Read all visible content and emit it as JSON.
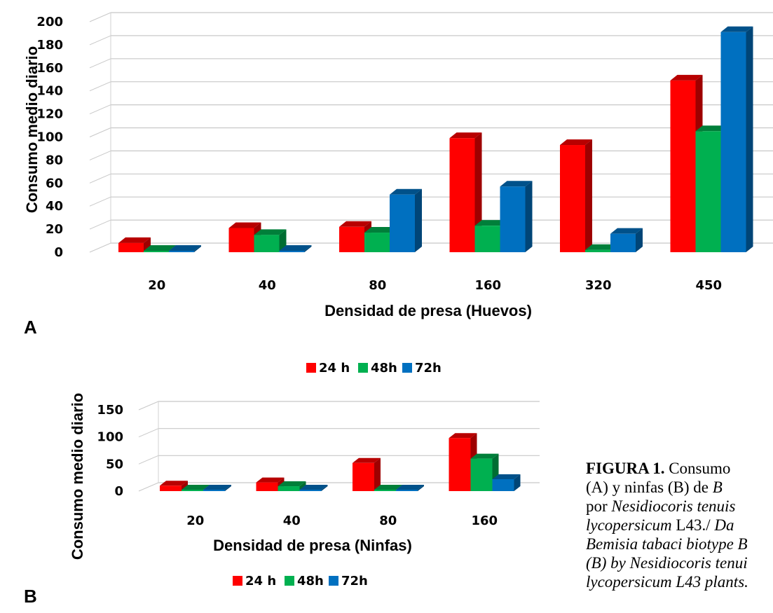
{
  "chart_data": [
    {
      "panel": "A",
      "type": "bar",
      "categories": [
        "20",
        "40",
        "80",
        "160",
        "320",
        "450"
      ],
      "series": [
        {
          "name": "24 h",
          "values": [
            8,
            21,
            22,
            99,
            93,
            149
          ]
        },
        {
          "name": "48h",
          "values": [
            0,
            15,
            17,
            23,
            2,
            105
          ]
        },
        {
          "name": "72h",
          "values": [
            0,
            1,
            50,
            57,
            16,
            191
          ]
        }
      ],
      "xlabel": "Densidad de presa (Huevos)",
      "ylabel": "Consumo medio diario",
      "ylim": [
        0,
        200
      ],
      "yticks": [
        "0",
        "20",
        "40",
        "60",
        "80",
        "100",
        "120",
        "140",
        "160",
        "180",
        "200"
      ],
      "grid": true,
      "legend_position": "bottom",
      "colors": {
        "24 h": "#ff0000",
        "48h": "#00b050",
        "72h": "#0070c0"
      }
    },
    {
      "panel": "B",
      "type": "bar",
      "categories": [
        "20",
        "40",
        "80",
        "160"
      ],
      "series": [
        {
          "name": "24 h",
          "values": [
            10,
            16,
            52,
            98
          ]
        },
        {
          "name": "48h",
          "values": [
            2,
            9,
            0,
            60
          ]
        },
        {
          "name": "72h",
          "values": [
            0,
            0,
            0,
            22
          ]
        }
      ],
      "xlabel": "Densidad de presa (Ninfas)",
      "ylabel": "Consumo medio diario",
      "ylim": [
        0,
        150
      ],
      "yticks": [
        "0",
        "50",
        "100",
        "150"
      ],
      "grid": true,
      "legend_position": "bottom",
      "colors": {
        "24 h": "#ff0000",
        "48h": "#00b050",
        "72h": "#0070c0"
      }
    }
  ],
  "panel_labels": {
    "a": "A",
    "b": "B"
  },
  "caption": {
    "lines": [
      [
        {
          "t": "FIGURA 1.",
          "s": "bold"
        },
        {
          "t": " Consumo",
          "s": ""
        }
      ],
      [
        {
          "t": "(A) y ninfas (B) de ",
          "s": ""
        },
        {
          "t": "B",
          "s": "it"
        }
      ],
      [
        {
          "t": "por ",
          "s": ""
        },
        {
          "t": "Nesidiocoris tenuis",
          "s": "it"
        }
      ],
      [
        {
          "t": "lycopersicum",
          "s": "it"
        },
        {
          "t": " L43./ ",
          "s": ""
        },
        {
          "t": "Da",
          "s": "it"
        }
      ],
      [
        {
          "t": "Bemisia tabaci biotype B",
          "s": "it"
        }
      ],
      [
        {
          "t": "(B) by Nesidiocoris tenui",
          "s": "it"
        }
      ],
      [
        {
          "t": "lycopersicum L43 plants.",
          "s": "it"
        }
      ]
    ]
  }
}
